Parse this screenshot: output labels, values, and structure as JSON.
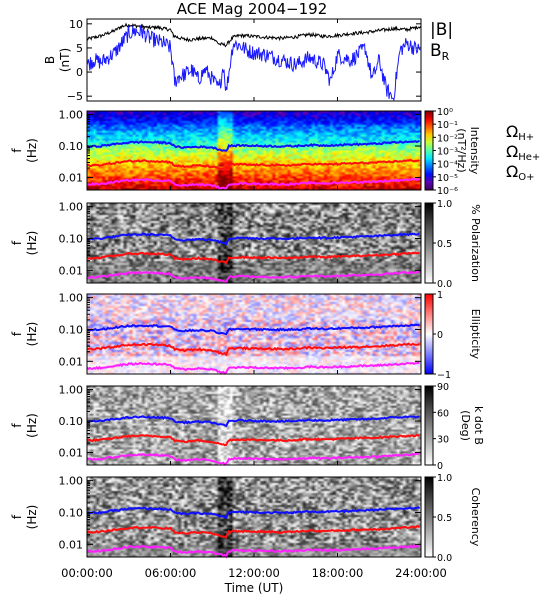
{
  "title": "ACE Mag 2004−192",
  "chart_data": [
    {
      "type": "line",
      "panel": "field",
      "ylabel": "B\n(nT)",
      "ylim": [
        -6,
        11
      ],
      "yticks": [
        -5,
        0,
        5,
        10
      ],
      "legend": [
        {
          "label": "|B|",
          "color": "#000000"
        },
        {
          "label": "B_R",
          "color": "#1a1aff"
        }
      ],
      "series": [
        {
          "name": "|B|",
          "color": "#000000",
          "x": [
            0,
            1,
            2,
            2.5,
            3,
            3.5,
            4,
            4.5,
            5,
            5.5,
            6,
            6.2,
            6.5,
            7,
            7.5,
            8,
            8.5,
            9,
            9.5,
            10,
            10.5,
            11,
            12,
            13,
            14,
            15,
            16,
            17,
            18,
            19,
            20,
            21,
            22,
            23,
            24
          ],
          "values": [
            6.8,
            7.5,
            8.6,
            9.5,
            9.8,
            9.6,
            9.4,
            9.2,
            9.3,
            9.0,
            8.8,
            7.6,
            7.2,
            6.8,
            6.7,
            6.9,
            7.0,
            7.1,
            5.8,
            5.6,
            7.2,
            7.6,
            7.4,
            7.2,
            7.0,
            7.3,
            7.8,
            7.4,
            7.6,
            8.0,
            8.2,
            8.6,
            9.0,
            8.8,
            9.5
          ]
        },
        {
          "name": "B_R",
          "color": "#1a1aff",
          "x": [
            0,
            0.5,
            1,
            1.5,
            2,
            2.5,
            3,
            3.5,
            4,
            4.5,
            5,
            5.5,
            6,
            6.3,
            6.6,
            7,
            7.5,
            8,
            8.5,
            9,
            9.5,
            9.8,
            10,
            10.5,
            11,
            11.5,
            12,
            12.5,
            13,
            14,
            15,
            16,
            17,
            17.5,
            18,
            19,
            20,
            20.5,
            21,
            21.5,
            22,
            22.5,
            23,
            23.5,
            24
          ],
          "values": [
            1.5,
            2.5,
            2.0,
            3.0,
            4.0,
            6.0,
            8.0,
            8.5,
            8.2,
            7.0,
            6.5,
            6.0,
            5.0,
            -2.0,
            -1.0,
            -0.5,
            0.5,
            -1.5,
            0.5,
            -1.5,
            -3.5,
            1.5,
            -4.0,
            6.0,
            5.5,
            4.5,
            4.0,
            3.8,
            3.5,
            2.5,
            1.5,
            3.0,
            1.5,
            -2.0,
            3.5,
            2.5,
            5.0,
            -1.5,
            2.5,
            -3.5,
            -5.5,
            4.5,
            6.0,
            5.0,
            4.5
          ]
        }
      ]
    },
    {
      "type": "heatmap",
      "panel": "intensity",
      "ylabel": "f\n(Hz)",
      "colorbar_label": "Intensity\n(nT²/Hz)",
      "colorbar_ticks": [
        "10⁰",
        "10⁻¹",
        "10⁻²",
        "10⁻³",
        "10⁻⁴",
        "10⁻⁵",
        "10⁻⁶"
      ],
      "annotations": [
        {
          "label": "ΩH+",
          "color": "#1a1aff"
        },
        {
          "label": "ΩHe+",
          "color": "#ff1a1a"
        },
        {
          "label": "ΩO+",
          "color": "#ff20ff"
        }
      ]
    },
    {
      "type": "heatmap",
      "panel": "polarization",
      "ylabel": "f\n(Hz)",
      "colorbar_label": "% Polarization",
      "colorbar_ticks": [
        "1.0",
        "0.5",
        "0.0"
      ]
    },
    {
      "type": "heatmap",
      "panel": "ellipticity",
      "ylabel": "f\n(Hz)",
      "colorbar_label": "Ellipticity",
      "colorbar_ticks": [
        "1",
        "0",
        "−1"
      ]
    },
    {
      "type": "heatmap",
      "panel": "kdotb",
      "ylabel": "f\n(Hz)",
      "colorbar_label": "k dot B\n(Deg)",
      "colorbar_ticks": [
        "90",
        "60",
        "30",
        "0"
      ]
    },
    {
      "type": "heatmap",
      "panel": "coherence",
      "ylabel": "f\n(Hz)",
      "colorbar_label": "Coherency",
      "colorbar_ticks": [
        "1.0",
        "0.5",
        "0.0"
      ]
    }
  ],
  "frequency_axis": {
    "ticks": [
      "1.00",
      "0.10",
      "0.01"
    ]
  },
  "time_axis": {
    "xlabel": "Time (UT)",
    "ticks": [
      "00:00:00",
      "06:00:00",
      "12:00:00",
      "18:00:00",
      "24:00:00"
    ],
    "range_hours": [
      0,
      24
    ]
  },
  "gyrofrequency_lines": {
    "x_hours": [
      0,
      1,
      2,
      3,
      4,
      5,
      6,
      6.3,
      7,
      8,
      9,
      9.5,
      10,
      10.2,
      11,
      12,
      13,
      14,
      15,
      16,
      17,
      18,
      19,
      20,
      21,
      22,
      23,
      24
    ],
    "H+": [
      0.095,
      0.1,
      0.115,
      0.13,
      0.135,
      0.13,
      0.125,
      0.095,
      0.09,
      0.095,
      0.09,
      0.078,
      0.07,
      0.1,
      0.105,
      0.102,
      0.1,
      0.098,
      0.1,
      0.108,
      0.104,
      0.108,
      0.112,
      0.115,
      0.12,
      0.13,
      0.135,
      0.14
    ],
    "He+": [
      0.024,
      0.025,
      0.029,
      0.033,
      0.034,
      0.033,
      0.031,
      0.024,
      0.022,
      0.024,
      0.022,
      0.019,
      0.017,
      0.025,
      0.026,
      0.025,
      0.025,
      0.024,
      0.025,
      0.027,
      0.026,
      0.027,
      0.028,
      0.029,
      0.03,
      0.032,
      0.034,
      0.035
    ],
    "O+": [
      0.006,
      0.0062,
      0.0072,
      0.0082,
      0.0085,
      0.0082,
      0.0078,
      0.006,
      0.0056,
      0.006,
      0.0056,
      0.0048,
      0.0043,
      0.0062,
      0.0065,
      0.0063,
      0.0062,
      0.0061,
      0.0062,
      0.0067,
      0.0065,
      0.0067,
      0.007,
      0.0072,
      0.0075,
      0.008,
      0.0085,
      0.0088
    ]
  }
}
